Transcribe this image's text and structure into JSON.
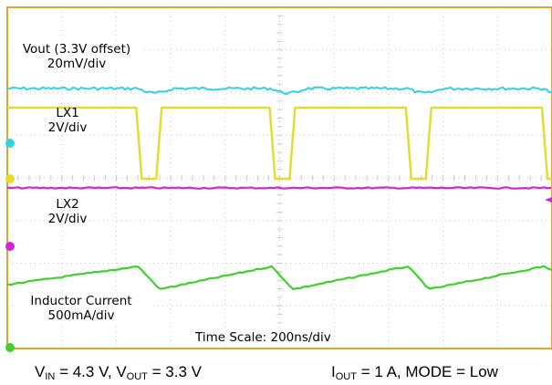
{
  "chart_data": {
    "type": "line",
    "title": "",
    "grid": true,
    "divisions": {
      "x": 10,
      "y": 8
    },
    "traces": [
      {
        "name": "Vout (3.3V offset)",
        "scale": "20mV/div",
        "color": "#2fd3e4"
      },
      {
        "name": "LX1",
        "scale": "2V/div",
        "color": "#e2dd2a"
      },
      {
        "name": "LX2",
        "scale": "2V/div",
        "color": "#d623d6"
      },
      {
        "name": "Inductor Current",
        "scale": "500mA/div",
        "color": "#3ed12c"
      }
    ],
    "lx1_switching": {
      "period_div": 2.5,
      "low_intervals_div": [
        [
          2.4,
          2.8
        ],
        [
          4.85,
          5.25
        ],
        [
          7.35,
          7.75
        ],
        [
          9.85,
          10.0
        ]
      ]
    },
    "time_scale_label": "Time Scale: 200ns/div"
  },
  "labels": {
    "vout_name": "Vout (3.3V offset)",
    "vout_scale": "20mV/div",
    "lx1_name": "LX1",
    "lx1_scale": "2V/div",
    "lx2_name": "LX2",
    "lx2_scale": "2V/div",
    "il_name": "Inductor Current",
    "il_scale": "500mA/div",
    "time_scale": "Time Scale: 200ns/div"
  },
  "caption": {
    "vin_sym": "V",
    "vin_sub": "IN",
    "vin_val": " = 4.3 V, ",
    "vout_sym": "V",
    "vout_sub": "OUT",
    "vout_val": " = 3.3 V",
    "iout_sym": "I",
    "iout_sub": "OUT",
    "iout_val": " = 1 A, MODE = Low"
  },
  "colors": {
    "frame": "#e2a52f",
    "grid": "#c9c9c9",
    "vout": "#2fd3e4",
    "lx1": "#e2dd2a",
    "lx2": "#d623d6",
    "il": "#3ed12c"
  }
}
